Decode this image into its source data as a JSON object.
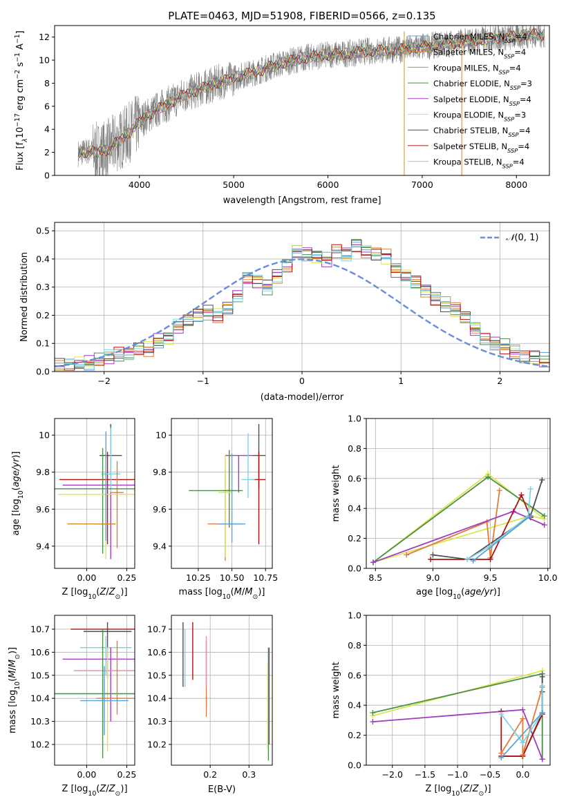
{
  "figure": {
    "title": "PLATE=0463, MJD=51908, FIBERID=0566, z=0.135"
  },
  "chart_data": [
    {
      "id": "spectrum",
      "type": "line",
      "xlabel": "wavelength [Angstrom, rest frame]",
      "ylabel": "Flux [f_λ10^-17 erg cm^-2 s^-1 A^-1]",
      "xlim": [
        3100,
        8350
      ],
      "ylim": [
        0,
        13
      ],
      "xticks": [
        4000,
        5000,
        6000,
        7000,
        8000
      ],
      "yticks": [
        0,
        2,
        4,
        6,
        8,
        10,
        12
      ],
      "grid": false,
      "legend_position": "top-right",
      "data_color": "#808080",
      "continuum": {
        "x": [
          3350,
          3450,
          3550,
          3650,
          3750,
          3850,
          3950,
          4050,
          4150,
          4250,
          4350,
          4450,
          4550,
          4650,
          4750,
          4850,
          4950,
          5050,
          5150,
          5250,
          5350,
          5450,
          5550,
          5650,
          5750,
          5850,
          5950,
          6050,
          6150,
          6250,
          6350,
          6450,
          6550,
          6650,
          6750,
          6850,
          6950,
          7050,
          7150,
          7250,
          7350,
          7450,
          7550,
          7650,
          7750,
          7850,
          7950,
          8050,
          8150,
          8250
        ],
        "y": [
          1.9,
          2.1,
          2.0,
          2.2,
          2.8,
          3.4,
          4.2,
          5.0,
          5.5,
          6.0,
          6.4,
          6.9,
          7.2,
          7.5,
          7.8,
          8.1,
          8.3,
          8.6,
          8.8,
          9.0,
          9.3,
          9.6,
          9.8,
          10.0,
          10.2,
          10.3,
          10.4,
          10.5,
          10.5,
          10.6,
          10.7,
          10.8,
          10.8,
          10.9,
          10.9,
          11.0,
          11.1,
          11.2,
          11.3,
          11.4,
          11.5,
          11.6,
          11.7,
          11.8,
          11.9,
          12.0,
          12.0,
          12.1,
          12.2,
          12.2
        ]
      },
      "series": [
        {
          "name": "Chabrier MILES, N_SSP=4",
          "color": "#5ca0d6"
        },
        {
          "name": "Salpeter MILES, N_SSP=4",
          "color": "#e07b3a"
        },
        {
          "name": "Kroupa MILES, N_SSP=4",
          "color": "#d18a2b"
        },
        {
          "name": "Chabrier ELODIE, N_SSP=3",
          "color": "#4a8f4a"
        },
        {
          "name": "Salpeter ELODIE, N_SSP=4",
          "color": "#a03cc0"
        },
        {
          "name": "Kroupa ELODIE, N_SSP=3",
          "color": "#dbe64a"
        },
        {
          "name": "Chabrier STELIB, N_SSP=4",
          "color": "#4d4d4d"
        },
        {
          "name": "Salpeter STELIB, N_SSP=4",
          "color": "#b01010"
        },
        {
          "name": "Kroupa STELIB, N_SSP=4",
          "color": "#7fd3e6"
        }
      ]
    },
    {
      "id": "residuals",
      "type": "histogram",
      "xlabel": "(data-model)/error",
      "ylabel": "Normed distribution",
      "xlim": [
        -2.5,
        2.5
      ],
      "ylim": [
        0,
        0.53
      ],
      "xticks": [
        -2,
        -1,
        0,
        1,
        2
      ],
      "yticks": [
        0.0,
        0.1,
        0.2,
        0.3,
        0.4,
        0.5
      ],
      "grid": true,
      "legend_position": "top-right",
      "bin_width": 0.1,
      "bin_start": -2.5,
      "reference": {
        "name": "N(0,1)",
        "color": "#6a8fd8"
      },
      "base_values": [
        0.02,
        0.02,
        0.03,
        0.03,
        0.04,
        0.05,
        0.06,
        0.06,
        0.08,
        0.08,
        0.11,
        0.12,
        0.16,
        0.18,
        0.2,
        0.21,
        0.2,
        0.23,
        0.27,
        0.33,
        0.32,
        0.3,
        0.34,
        0.38,
        0.43,
        0.42,
        0.41,
        0.4,
        0.43,
        0.42,
        0.45,
        0.43,
        0.42,
        0.41,
        0.36,
        0.34,
        0.32,
        0.29,
        0.26,
        0.24,
        0.22,
        0.19,
        0.15,
        0.12,
        0.1,
        0.09,
        0.07,
        0.05,
        0.05,
        0.04
      ],
      "series_colors": [
        "#5ca0d6",
        "#e07b3a",
        "#d18a2b",
        "#4a8f4a",
        "#a03cc0",
        "#dbe64a",
        "#4d4d4d",
        "#b01010",
        "#7fd3e6"
      ]
    },
    {
      "id": "age-vs-Z",
      "type": "errorbar",
      "xlabel": "Z [log10(Z/Z⊙)]",
      "ylabel": "age [log10(age/yr)]",
      "xlim": [
        -0.2,
        0.3
      ],
      "ylim": [
        9.28,
        10.09
      ],
      "xticks": [
        0.0,
        0.25
      ],
      "xtick_labels": [
        "0.00",
        "0.25"
      ],
      "yticks": [
        9.4,
        9.6,
        9.8,
        10.0
      ],
      "grid": true,
      "points": [
        {
          "x": 0.15,
          "xerr": 0.07,
          "y": 9.89,
          "yerr": [
            0.22,
            0.17
          ],
          "color": "#4d4d4d"
        },
        {
          "x": 0.13,
          "xerr": 0.3,
          "y": 9.76,
          "yerr": [
            0.35,
            0.15
          ],
          "color": "#b01010"
        },
        {
          "x": 0.15,
          "xerr": 0.3,
          "y": 9.73,
          "yerr": [
            0.4,
            0.3
          ],
          "color": "#a03cc0"
        },
        {
          "x": 0.15,
          "xerr": 0.06,
          "y": 9.79,
          "yerr": [
            0.1,
            0.25
          ],
          "color": "#7fd3e6"
        },
        {
          "x": 0.19,
          "xerr": 0.04,
          "y": 9.69,
          "yerr": [
            0.3,
            0.17
          ],
          "color": "#e07b3a"
        },
        {
          "x": 0.1,
          "xerr": 0.3,
          "y": 9.71,
          "yerr": [
            0.35,
            0.22
          ],
          "color": "#4a8f4a"
        },
        {
          "x": 0.12,
          "xerr": 0.3,
          "y": 9.68,
          "yerr": [
            0.35,
            0.25
          ],
          "color": "#dbe64a"
        },
        {
          "x": 0.12,
          "xerr": 0.06,
          "y": 9.52,
          "yerr": [
            0.09,
            0.5
          ],
          "color": "#5ca0d6"
        },
        {
          "x": 0.03,
          "xerr": 0.15,
          "y": 9.52,
          "yerr": [
            0.0,
            0.0
          ],
          "color": "#d18a2b"
        }
      ]
    },
    {
      "id": "age-vs-mass",
      "type": "errorbar",
      "xlabel": "mass [log10(M/M⊙)]",
      "ylabel": "",
      "xlim": [
        10.05,
        10.8
      ],
      "ylim": [
        9.28,
        10.09
      ],
      "xticks": [
        10.25,
        10.5,
        10.75
      ],
      "xtick_labels": [
        "10.25",
        "10.50",
        "10.75"
      ],
      "yticks": [
        9.4,
        9.6,
        9.8,
        10.0
      ],
      "grid": true,
      "points": [
        {
          "x": 10.7,
          "xerr": 0.05,
          "y": 9.89,
          "yerr": [
            0.18,
            0.17
          ],
          "color": "#4d4d4d"
        },
        {
          "x": 10.7,
          "xerr": 0.05,
          "y": 9.76,
          "yerr": [
            0.35,
            0.15
          ],
          "color": "#b01010"
        },
        {
          "x": 10.55,
          "xerr": 0.1,
          "y": 9.89,
          "yerr": [
            0.2,
            0.0
          ],
          "color": "#a03cc0"
        },
        {
          "x": 10.62,
          "xerr": 0.05,
          "y": 9.76,
          "yerr": [
            0.1,
            0.25
          ],
          "color": "#7fd3e6"
        },
        {
          "x": 10.45,
          "xerr": 0.13,
          "y": 9.52,
          "yerr": [
            0.2,
            0.3
          ],
          "color": "#e07b3a"
        },
        {
          "x": 10.48,
          "xerr": 0.05,
          "y": 9.7,
          "yerr": [
            0.2,
            0.22
          ],
          "color": "#4a8f4a"
        },
        {
          "x": 10.45,
          "xerr": 0.05,
          "y": 9.69,
          "yerr": [
            0.35,
            0.2
          ],
          "color": "#dbe64a"
        },
        {
          "x": 10.5,
          "xerr": 0.1,
          "y": 9.52,
          "yerr": [
            0.1,
            0.38
          ],
          "color": "#5ca0d6"
        },
        {
          "x": 10.38,
          "xerr": 0.2,
          "y": 9.7,
          "yerr": [
            0.0,
            0.0
          ],
          "color": "#4a8f4a"
        }
      ]
    },
    {
      "id": "mass-weight-vs-age",
      "type": "line",
      "xlabel": "age [log10(age/yr)]",
      "ylabel": "mass weight",
      "xlim": [
        8.42,
        10.02
      ],
      "ylim": [
        0,
        1
      ],
      "xticks": [
        8.5,
        9.0,
        9.5,
        10.0
      ],
      "xtick_labels": [
        "8.5",
        "9.0",
        "9.5",
        "10.0"
      ],
      "yticks": [
        0.0,
        0.2,
        0.4,
        0.6,
        0.8,
        1.0
      ],
      "grid": true,
      "series": [
        {
          "color": "#dbe64a",
          "x": [
            8.48,
            9.48,
            9.97,
            9.85,
            8.48
          ],
          "y": [
            0.04,
            0.63,
            0.33,
            0.35,
            0.04
          ]
        },
        {
          "color": "#4a8f4a",
          "x": [
            8.48,
            9.48,
            9.97
          ],
          "y": [
            0.04,
            0.61,
            0.35
          ]
        },
        {
          "color": "#e07b3a",
          "x": [
            8.77,
            9.47,
            9.5,
            9.58
          ],
          "y": [
            0.09,
            0.31,
            0.07,
            0.52
          ]
        },
        {
          "color": "#a03cc0",
          "x": [
            8.48,
            9.7,
            9.97
          ],
          "y": [
            0.04,
            0.38,
            0.29
          ]
        },
        {
          "color": "#4d4d4d",
          "x": [
            9.0,
            9.3,
            9.85,
            9.95
          ],
          "y": [
            0.09,
            0.06,
            0.35,
            0.59
          ]
        },
        {
          "color": "#b01010",
          "x": [
            8.98,
            9.5,
            9.77,
            9.85
          ],
          "y": [
            0.06,
            0.06,
            0.49,
            0.34
          ]
        },
        {
          "color": "#7fd3e6",
          "x": [
            9.3,
            9.5,
            9.83,
            9.85
          ],
          "y": [
            0.06,
            0.15,
            0.35,
            0.53
          ]
        },
        {
          "color": "#5ca0d6",
          "x": [
            9.35,
            9.85
          ],
          "y": [
            0.05,
            0.35
          ]
        }
      ]
    },
    {
      "id": "mass-vs-Z",
      "type": "errorbar",
      "xlabel": "Z [log10(Z/Z⊙)]",
      "ylabel": "mass [log10(M/M⊙)]",
      "xlim": [
        -0.2,
        0.3
      ],
      "ylim": [
        10.11,
        10.76
      ],
      "xticks": [
        0.0,
        0.25
      ],
      "xtick_labels": [
        "0.00",
        "0.25"
      ],
      "yticks": [
        10.2,
        10.3,
        10.4,
        10.5,
        10.6,
        10.7
      ],
      "grid": true,
      "points": [
        {
          "x": 0.1,
          "xerr": 0.2,
          "y": 10.7,
          "yerr": [
            0.0,
            0.0
          ],
          "color": "#b01010"
        },
        {
          "x": 0.13,
          "xerr": 0.15,
          "y": 10.69,
          "yerr": [
            0.2,
            0.04
          ],
          "color": "#4d4d4d"
        },
        {
          "x": 0.12,
          "xerr": 0.16,
          "y": 10.62,
          "yerr": [
            0.12,
            0.05
          ],
          "color": "#7fd3e6"
        },
        {
          "x": 0.15,
          "xerr": 0.3,
          "y": 10.57,
          "yerr": [
            0.27,
            0.05
          ],
          "color": "#a03cc0"
        },
        {
          "x": 0.12,
          "xerr": 0.2,
          "y": 10.52,
          "yerr": [
            0.0,
            0.0
          ],
          "color": "#e890b0"
        },
        {
          "x": 0.13,
          "xerr": 0.3,
          "y": 10.42,
          "yerr": [
            0.25,
            0.2
          ],
          "color": "#dbe64a"
        },
        {
          "x": 0.1,
          "xerr": 0.3,
          "y": 10.42,
          "yerr": [
            0.28,
            0.28
          ],
          "color": "#4a8f4a"
        },
        {
          "x": 0.19,
          "xerr": 0.13,
          "y": 10.4,
          "yerr": [
            0.07,
            0.25
          ],
          "color": "#e07b3a"
        },
        {
          "x": 0.11,
          "xerr": 0.15,
          "y": 10.39,
          "yerr": [
            0.15,
            0.15
          ],
          "color": "#5ca0d6"
        }
      ]
    },
    {
      "id": "mass-vs-ebv",
      "type": "errorbar",
      "xlabel": "E(B-V)",
      "ylabel": "",
      "xlim": [
        0.1,
        0.36
      ],
      "ylim": [
        10.11,
        10.76
      ],
      "xticks": [
        0.2,
        0.3
      ],
      "xtick_labels": [
        "0.2",
        "0.3"
      ],
      "yticks": [
        10.2,
        10.3,
        10.4,
        10.5,
        10.6,
        10.7
      ],
      "grid": true,
      "points": [
        {
          "x": 0.13,
          "xerr": 0,
          "y": 10.6,
          "yerr": [
            0.15,
            0.13
          ],
          "color": "#4d4d4d"
        },
        {
          "x": 0.135,
          "xerr": 0,
          "y": 10.55,
          "yerr": [
            0.1,
            0.15
          ],
          "color": "#7fd3e6"
        },
        {
          "x": 0.155,
          "xerr": 0,
          "y": 10.6,
          "yerr": [
            0.12,
            0.13
          ],
          "color": "#b01010"
        },
        {
          "x": 0.19,
          "xerr": 0,
          "y": 10.45,
          "yerr": [
            0.13,
            0.2
          ],
          "color": "#e07b3a"
        },
        {
          "x": 0.19,
          "xerr": 0,
          "y": 10.55,
          "yerr": [
            0.1,
            0.12
          ],
          "color": "#e890b0"
        },
        {
          "x": 0.35,
          "xerr": 0,
          "y": 10.4,
          "yerr": [
            0.27,
            0.22
          ],
          "color": "#4a8f4a"
        },
        {
          "x": 0.352,
          "xerr": 0,
          "y": 10.5,
          "yerr": [
            0.3,
            0.12
          ],
          "color": "#a03cc0"
        },
        {
          "x": 0.348,
          "xerr": 0,
          "y": 10.4,
          "yerr": [
            0.22,
            0.15
          ],
          "color": "#dbe64a"
        }
      ]
    },
    {
      "id": "mass-weight-vs-Z",
      "type": "line",
      "xlabel": "Z [log10(Z/Z⊙)]",
      "ylabel": "mass weight",
      "xlim": [
        -2.4,
        0.42
      ],
      "ylim": [
        0,
        1
      ],
      "xticks": [
        -2.0,
        -1.5,
        -1.0,
        -0.5,
        0.0
      ],
      "xtick_labels": [
        "−2.0",
        "−1.5",
        "−1.0",
        "−0.5",
        "0.0"
      ],
      "yticks": [
        0.0,
        0.2,
        0.4,
        0.6,
        0.8,
        1.0
      ],
      "grid": true,
      "series": [
        {
          "color": "#dbe64a",
          "x": [
            -2.3,
            0.3,
            0.3
          ],
          "y": [
            0.33,
            0.63,
            0.04
          ]
        },
        {
          "color": "#4a8f4a",
          "x": [
            -2.3,
            0.3,
            0.3
          ],
          "y": [
            0.35,
            0.61,
            0.04
          ]
        },
        {
          "color": "#a03cc0",
          "x": [
            -2.3,
            0.0,
            0.3
          ],
          "y": [
            0.29,
            0.37,
            0.04
          ]
        },
        {
          "color": "#4d4d4d",
          "x": [
            -0.33,
            0.0,
            0.3,
            0.3
          ],
          "y": [
            0.06,
            0.06,
            0.35,
            0.59
          ]
        },
        {
          "color": "#b01010",
          "x": [
            -0.33,
            -0.33,
            0.0,
            0.3,
            0.3
          ],
          "y": [
            0.36,
            0.06,
            0.06,
            0.34,
            0.49
          ]
        },
        {
          "color": "#e07b3a",
          "x": [
            -0.33,
            0.0,
            0.0,
            0.3
          ],
          "y": [
            0.08,
            0.31,
            0.07,
            0.52
          ]
        },
        {
          "color": "#7fd3e6",
          "x": [
            -0.33,
            0.0,
            0.3,
            0.3
          ],
          "y": [
            0.34,
            0.15,
            0.35,
            0.53
          ]
        },
        {
          "color": "#5ca0d6",
          "x": [
            -0.33,
            0.3
          ],
          "y": [
            0.05,
            0.35
          ]
        }
      ]
    }
  ]
}
